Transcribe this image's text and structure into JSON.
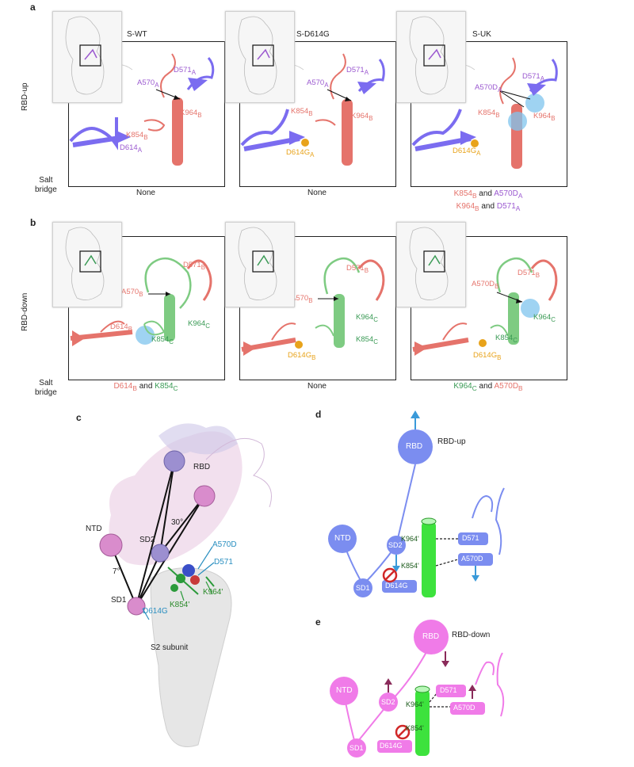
{
  "panel_a": {
    "letter": "a",
    "row_label": "RBD-up",
    "salt_bridge_label": [
      "Salt",
      "bridge"
    ],
    "frames": [
      {
        "title": "S-WT",
        "labels": {
          "a570": "A570",
          "a570_sub": "A",
          "d571": "D571",
          "d571_sub": "A",
          "k854": "K854",
          "k854_sub": "B",
          "k964": "K964",
          "k964_sub": "B",
          "d614": "D614",
          "d614_sub": "A"
        },
        "caption": "None"
      },
      {
        "title": "S-D614G",
        "labels": {
          "a570": "A570",
          "a570_sub": "A",
          "d571": "D571",
          "d571_sub": "A",
          "k854": "K854",
          "k854_sub": "B",
          "k964": "K964",
          "k964_sub": "B",
          "d614": "D614G",
          "d614_sub": "A"
        },
        "caption": "None"
      },
      {
        "title": "S-UK",
        "labels": {
          "a570": "A570D",
          "a570_sub": "A",
          "d571": "D571",
          "d571_sub": "A",
          "k854": "K854",
          "k854_sub": "B",
          "k964": "K964",
          "k964_sub": "B",
          "d614": "D614G",
          "d614_sub": "A"
        },
        "caption_lines": [
          [
            "K854",
            "B",
            " and ",
            "A570D",
            "A"
          ],
          [
            "K964",
            "B",
            " and ",
            "D571",
            "A"
          ]
        ]
      }
    ]
  },
  "panel_b": {
    "letter": "b",
    "row_label": "RBD-down",
    "salt_bridge_label": [
      "Salt",
      "bridge"
    ],
    "frames": [
      {
        "labels": {
          "d571": "D571",
          "d571_sub": "B",
          "a570": "A570",
          "a570_sub": "B",
          "k964": "K964",
          "k964_sub": "C",
          "k854": "K854",
          "k854_sub": "C",
          "d614": "D614",
          "d614_sub": "B"
        },
        "caption_parts": [
          "D614",
          "B",
          " and ",
          "K854",
          "C"
        ]
      },
      {
        "labels": {
          "d571": "D571",
          "d571_sub": "B",
          "a570": "A570",
          "a570_sub": "B",
          "k964": "K964",
          "k964_sub": "C",
          "k854": "K854",
          "k854_sub": "C",
          "d614": "D614G",
          "d614_sub": "B"
        },
        "caption": "None"
      },
      {
        "labels": {
          "d571": "D571",
          "d571_sub": "B",
          "a570": "A570D",
          "a570_sub": "B",
          "k964": "K964",
          "k964_sub": "C",
          "k854": "K854",
          "k854_sub": "C",
          "d614": "D614G",
          "d614_sub": "B"
        },
        "caption_parts": [
          "K964",
          "C",
          " and ",
          "A570D",
          "B"
        ]
      }
    ]
  },
  "panel_c": {
    "letter": "c",
    "labels": {
      "rbd": "RBD",
      "ntd": "NTD",
      "sd2": "SD2",
      "sd1": "SD1",
      "angle30": "30°",
      "angle7": "7°",
      "a570d": "A570D",
      "d571": "D571",
      "d614g": "D614G",
      "k964": "K964'",
      "k854": "K854'",
      "s2": "S2 subunit"
    }
  },
  "panel_d": {
    "letter": "d",
    "labels": {
      "rbd": "RBD",
      "rbd_state": "RBD-up",
      "ntd": "NTD",
      "sd2": "SD2",
      "sd1": "SD1",
      "d614g": "D614G",
      "k964": "K964'",
      "k854": "K854'",
      "d571": "D571",
      "a570d": "A570D"
    },
    "color": "#7b8df0"
  },
  "panel_e": {
    "letter": "e",
    "labels": {
      "rbd": "RBD",
      "rbd_state": "RBD-down",
      "ntd": "NTD",
      "sd2": "SD2",
      "sd1": "SD1",
      "d614g": "D614G",
      "k964": "K964'",
      "k854": "K854'",
      "d571": "D571",
      "a570d": "A570D"
    },
    "color": "#f07be8"
  },
  "colors": {
    "purple": "#9b59d0",
    "salmon": "#e5736b",
    "green": "#3a9a55",
    "orange": "#e8a31b",
    "blue_label": "#2a8fc0",
    "helix_green": "#3de23d",
    "arrow_blue": "#3a9ad9",
    "arrow_maroon": "#8a2b5a"
  }
}
